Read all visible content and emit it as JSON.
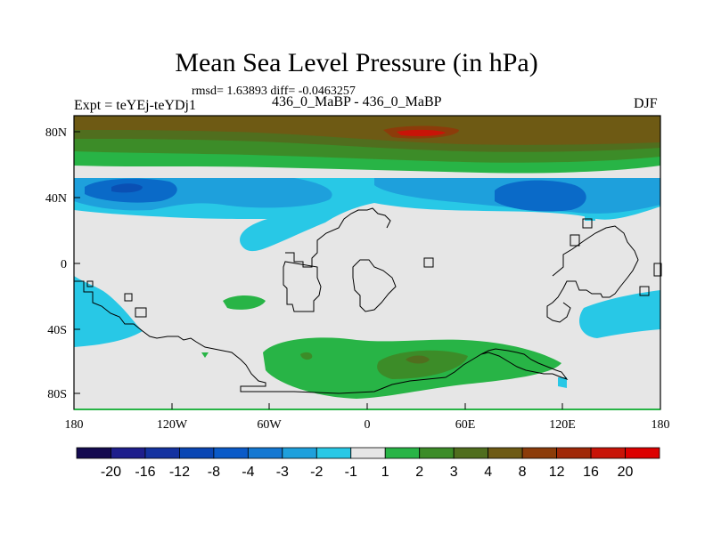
{
  "title": "Mean Sea Level Pressure (in hPa)",
  "stats": "rmsd= 1.63893 diff= -0.0463257",
  "experiment": "Expt = teYEj-teYDj1",
  "subtitle": "436_0_MaBP - 436_0_MaBP",
  "season": "DJF",
  "lat_labels": [
    "80N",
    "40N",
    "0",
    "40S",
    "80S"
  ],
  "lon_labels": [
    "180",
    "120W",
    "60W",
    "0",
    "60E",
    "120E",
    "180"
  ],
  "colorbar": {
    "labels": [
      "-20",
      "-16",
      "-12",
      "-8",
      "-4",
      "-3",
      "-2",
      "-1",
      "1",
      "2",
      "3",
      "4",
      "8",
      "12",
      "16",
      "20"
    ],
    "colors": [
      "#140a50",
      "#1e1e8c",
      "#1432a0",
      "#0a46b4",
      "#0a5ac8",
      "#1478d2",
      "#1ea0dc",
      "#28c8e6",
      "#e6e6e6",
      "#28b446",
      "#3c8c28",
      "#506e1e",
      "#6e5a14",
      "#8c3c0a",
      "#a02808",
      "#c81408",
      "#dc0000"
    ]
  },
  "map_colors": {
    "neutral": "#e6e6e6",
    "cyan": "#28c8e6",
    "light_blue": "#1ea0dc",
    "blue": "#0a6ac8",
    "deep_blue": "#0a50b4",
    "green": "#28b446",
    "dark_green": "#3c8c28",
    "olive": "#506e1e",
    "brown": "#6e5a14",
    "rust": "#8c3c0a",
    "red": "#c81408"
  }
}
